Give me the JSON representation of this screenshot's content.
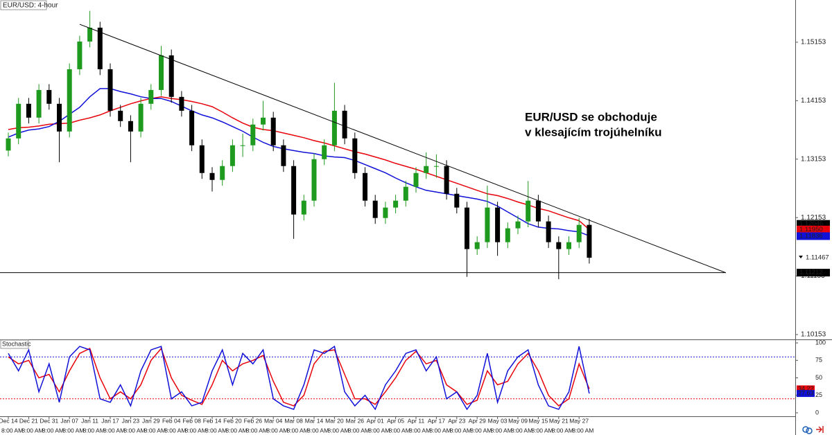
{
  "chart_data": [
    {
      "type": "candlestick",
      "title": "EUR/USD: 4-hour",
      "annotation": [
        "EUR/USD se obchoduje",
        "v klesajícím trojúhelníku"
      ],
      "x": [
        "Dec 14",
        null,
        "Dec 21",
        null,
        "Dec 31",
        null,
        "Jan 07",
        null,
        "Jan 11",
        null,
        "Jan 17",
        null,
        "Jan 23",
        null,
        "Jan 29",
        null,
        "Feb 04",
        null,
        "Feb 08",
        null,
        "Feb 14",
        null,
        "Feb 20",
        null,
        "Feb 26",
        null,
        "Mar 04",
        null,
        "Mar 08",
        null,
        "Mar 14",
        null,
        "Mar 20",
        null,
        "Mar 26",
        null,
        "Apr 01",
        null,
        "Apr 05",
        null,
        "Apr 11",
        null,
        "Apr 17",
        null,
        "Apr 23",
        null,
        "Apr 29",
        null,
        "May 03",
        null,
        "May 09",
        null,
        "May 15",
        null,
        "May 21",
        null,
        "May 27",
        null
      ],
      "time_label": "8:00 AM",
      "open": [
        1.133,
        1.13508,
        1.141,
        1.13863,
        1.14336,
        1.141,
        1.13626,
        1.14691,
        1.15165,
        1.15402,
        1.14691,
        1.13981,
        1.13804,
        1.13626,
        1.141,
        1.14336,
        1.14928,
        1.14218,
        1.13981,
        1.1339,
        1.12916,
        1.12798,
        1.13035,
        1.1339,
        1.1339,
        1.13745,
        1.13863,
        1.1339,
        1.13035,
        1.12206,
        1.12443,
        1.13153,
        1.1339,
        1.13981,
        1.13508,
        1.12916,
        1.12443,
        1.12147,
        1.12325,
        1.12443,
        1.1268,
        1.12916,
        1.13035,
        1.13035,
        1.12561,
        1.12325,
        1.11615,
        1.11733,
        1.12325,
        1.11733,
        1.1197,
        1.12088,
        1.12443,
        1.12088,
        1.11733,
        1.11615,
        1.11733,
        1.12029
      ],
      "high": [
        1.13608,
        1.142,
        1.142,
        1.14436,
        1.14436,
        1.142,
        1.14791,
        1.15265,
        1.1569,
        1.15502,
        1.14791,
        1.14081,
        1.13904,
        1.142,
        1.14436,
        1.1509,
        1.15028,
        1.14318,
        1.14081,
        1.1349,
        1.13016,
        1.13135,
        1.1349,
        1.1359,
        1.13845,
        1.1415,
        1.13963,
        1.1349,
        1.13135,
        1.12543,
        1.13253,
        1.1349,
        1.1446,
        1.14081,
        1.13608,
        1.13016,
        1.12543,
        1.12425,
        1.12543,
        1.1278,
        1.13016,
        1.1327,
        1.13235,
        1.13135,
        1.12661,
        1.12425,
        1.11833,
        1.127,
        1.12425,
        1.1207,
        1.12188,
        1.1278,
        1.12543,
        1.12188,
        1.11833,
        1.11833,
        1.1215,
        1.12129
      ],
      "low": [
        1.132,
        1.13408,
        1.13763,
        1.13763,
        1.14,
        1.131,
        1.13526,
        1.14591,
        1.15065,
        1.14591,
        1.13881,
        1.13704,
        1.131,
        1.13526,
        1.14,
        1.14236,
        1.14118,
        1.13881,
        1.1329,
        1.12816,
        1.126,
        1.12698,
        1.12935,
        1.1319,
        1.1329,
        1.13645,
        1.1329,
        1.12935,
        1.1179,
        1.12106,
        1.12343,
        1.13053,
        1.1329,
        1.13408,
        1.12816,
        1.12343,
        1.12047,
        1.12047,
        1.12225,
        1.12343,
        1.1258,
        1.12816,
        1.12835,
        1.12461,
        1.12225,
        1.1114,
        1.11515,
        1.11633,
        1.115,
        1.11633,
        1.1187,
        1.11988,
        1.11988,
        1.11633,
        1.111,
        1.11515,
        1.11633,
        1.11367
      ],
      "close": [
        1.13508,
        1.141,
        1.13863,
        1.14336,
        1.141,
        1.13626,
        1.14691,
        1.15165,
        1.15402,
        1.14691,
        1.13981,
        1.13804,
        1.13626,
        1.141,
        1.14336,
        1.14928,
        1.14218,
        1.13981,
        1.1339,
        1.12916,
        1.12798,
        1.13035,
        1.1339,
        1.1339,
        1.13745,
        1.13863,
        1.1339,
        1.13035,
        1.12206,
        1.12443,
        1.13153,
        1.1339,
        1.13981,
        1.13508,
        1.12916,
        1.12443,
        1.12147,
        1.12325,
        1.12443,
        1.1268,
        1.12916,
        1.13035,
        1.13035,
        1.12561,
        1.12325,
        1.11615,
        1.11733,
        1.12325,
        1.11733,
        1.1197,
        1.12088,
        1.12443,
        1.12088,
        1.11733,
        1.11615,
        1.11733,
        1.12029,
        1.11467
      ],
      "up_color": "#1e9a1e",
      "down_color": "#000000",
      "series": [
        {
          "color": "#e8000a",
          "values": [
            1.1366,
            1.1369,
            1.137,
            1.1372,
            1.1375,
            1.1376,
            1.1377,
            1.1382,
            1.1386,
            1.1391,
            1.1398,
            1.1404,
            1.141,
            1.1415,
            1.1419,
            1.1422,
            1.1419,
            1.1417,
            1.1414,
            1.141,
            1.1405,
            1.1396,
            1.1386,
            1.1377,
            1.137,
            1.1366,
            1.1364,
            1.136,
            1.1356,
            1.1352,
            1.1347,
            1.1343,
            1.1338,
            1.1333,
            1.1328,
            1.1324,
            1.1319,
            1.1314,
            1.1308,
            1.1303,
            1.1298,
            1.1292,
            1.1286,
            1.128,
            1.1274,
            1.1268,
            1.1262,
            1.1256,
            1.1253,
            1.1248,
            1.1242,
            1.1237,
            1.1231,
            1.1227,
            1.1221,
            1.1215,
            1.121,
            1.1195
          ]
        },
        {
          "color": "#1010d8",
          "values": [
            1.1353,
            1.136,
            1.1365,
            1.1367,
            1.1371,
            1.138,
            1.1392,
            1.1404,
            1.1422,
            1.1436,
            1.1436,
            1.1431,
            1.1427,
            1.1422,
            1.1419,
            1.1419,
            1.1414,
            1.1406,
            1.1398,
            1.1391,
            1.1386,
            1.1379,
            1.1371,
            1.1363,
            1.1353,
            1.1344,
            1.1337,
            1.1333,
            1.133,
            1.1327,
            1.1325,
            1.1321,
            1.1319,
            1.1318,
            1.1313,
            1.1306,
            1.1299,
            1.1292,
            1.1283,
            1.1275,
            1.1268,
            1.1262,
            1.1259,
            1.1256,
            1.1253,
            1.125,
            1.1247,
            1.1243,
            1.1235,
            1.1225,
            1.1215,
            1.1205,
            1.1199,
            1.1197,
            1.1196,
            1.1193,
            1.1191,
            1.1184
          ]
        }
      ],
      "trendline": {
        "x": [
          7,
          70.4
        ],
        "y": [
          1.1546,
          1.1121
        ]
      },
      "price_tags": [
        {
          "value": 1.12046,
          "color": "#000000"
        },
        {
          "value": 1.1195,
          "label": "1.11950",
          "color": "#e8000a"
        },
        {
          "value": 1.11836,
          "color": "#1010d8"
        },
        {
          "value": 1.11467,
          "color": "#ffffff"
        },
        {
          "value": 1.11212,
          "color": "#000000",
          "line": true
        }
      ],
      "ylim": [
        1.1007,
        1.15875
      ],
      "yticks": [
        1.10153,
        1.11153,
        1.12153,
        1.13153,
        1.14153,
        1.15153
      ],
      "grid": false
    },
    {
      "type": "line",
      "title": "Stochastic",
      "series": [
        {
          "color": "#e8000a",
          "values": [
            80,
            70,
            75,
            50,
            55,
            30,
            60,
            85,
            92,
            50,
            20,
            30,
            20,
            40,
            75,
            92,
            50,
            25,
            18,
            12,
            40,
            75,
            60,
            70,
            75,
            82,
            45,
            15,
            10,
            25,
            70,
            88,
            90,
            55,
            20,
            20,
            12,
            30,
            50,
            75,
            88,
            70,
            75,
            40,
            30,
            12,
            18,
            60,
            40,
            45,
            70,
            85,
            60,
            25,
            10,
            20,
            70,
            34.22
          ]
        },
        {
          "color": "#1010d8",
          "values": [
            85,
            60,
            90,
            30,
            70,
            15,
            80,
            95,
            90,
            20,
            15,
            40,
            10,
            60,
            90,
            95,
            20,
            30,
            10,
            15,
            60,
            90,
            40,
            85,
            70,
            90,
            20,
            10,
            5,
            40,
            90,
            85,
            95,
            30,
            10,
            25,
            5,
            40,
            60,
            85,
            90,
            60,
            80,
            20,
            30,
            5,
            25,
            85,
            15,
            60,
            80,
            90,
            40,
            10,
            5,
            30,
            95,
            27.63
          ]
        }
      ],
      "levels": [
        {
          "value": 80,
          "color": "#1010d8"
        },
        {
          "value": 20,
          "color": "#e8000a"
        }
      ],
      "ylim": [
        -5,
        105
      ],
      "yticks": [
        0,
        25,
        50,
        75,
        100
      ]
    }
  ]
}
